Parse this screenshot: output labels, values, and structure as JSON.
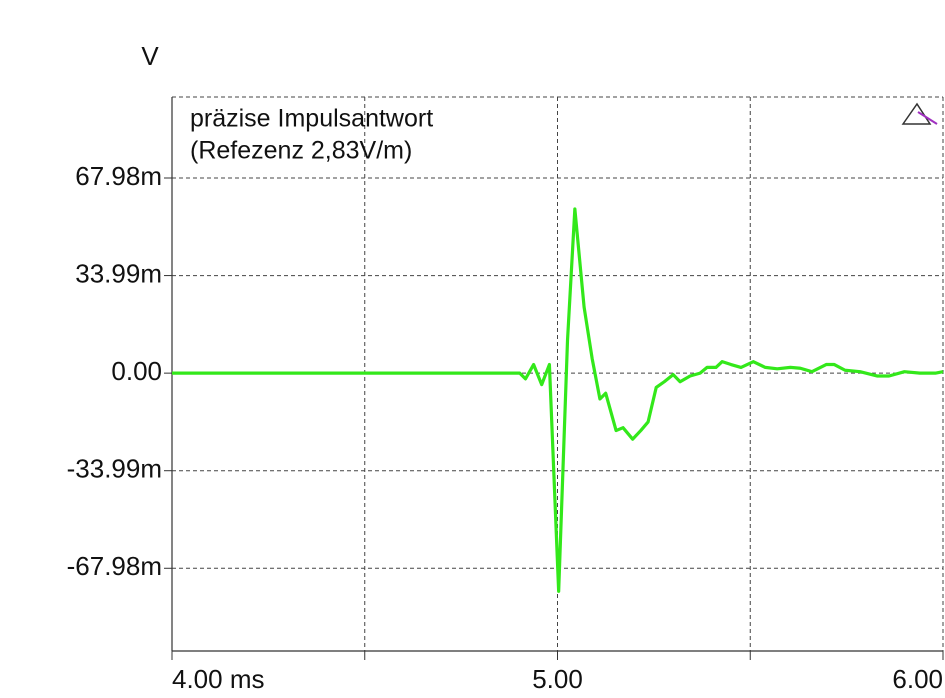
{
  "chart_data": {
    "type": "line",
    "y_unit": "V",
    "legend_lines": [
      "präzise Impulsantwort",
      "(Refezenz 2,83V/m)"
    ],
    "xlim": [
      4.0,
      6.0
    ],
    "xticks": [
      {
        "value": 4.0,
        "label": "4.00 ms"
      },
      {
        "value": 5.0,
        "label": "5.00"
      },
      {
        "value": 6.0,
        "label": "6.00"
      }
    ],
    "x_grid_lines": [
      4.5,
      5.5
    ],
    "ylim": [
      -0.0968,
      0.0962
    ],
    "yticks": [
      {
        "value": 0.06798,
        "label": "67.98m"
      },
      {
        "value": 0.03399,
        "label": "33.99m"
      },
      {
        "value": 0,
        "label": "0.00"
      },
      {
        "value": -0.03399,
        "label": "-33.99m"
      },
      {
        "value": -0.06798,
        "label": "-67.98m"
      }
    ],
    "grid": true,
    "x": [
      4.0,
      4.902,
      4.917,
      4.938,
      4.959,
      4.979,
      5.003,
      5.026,
      5.045,
      5.069,
      5.09,
      5.11,
      5.125,
      5.152,
      5.17,
      5.195,
      5.216,
      5.235,
      5.256,
      5.277,
      5.3,
      5.318,
      5.344,
      5.37,
      5.388,
      5.411,
      5.427,
      5.45,
      5.476,
      5.508,
      5.539,
      5.57,
      5.604,
      5.63,
      5.66,
      5.697,
      5.718,
      5.746,
      5.785,
      5.83,
      5.86,
      5.9,
      5.94,
      5.98,
      6.0
    ],
    "series": [
      {
        "name": "präzise Impulsantwort",
        "color": "#33e81a",
        "values": [
          0,
          0,
          -0.002,
          0.003,
          -0.004,
          0.003,
          -0.076,
          0.0115,
          0.0572,
          0.023,
          0.005,
          -0.009,
          -0.007,
          -0.02,
          -0.019,
          -0.023,
          -0.02,
          -0.017,
          -0.005,
          -0.003,
          -0.0005,
          -0.003,
          -0.001,
          0.0,
          0.002,
          0.002,
          0.004,
          0.003,
          0.002,
          0.004,
          0.002,
          0.0015,
          0.002,
          0.0017,
          0.0005,
          0.003,
          0.003,
          0.001,
          0.0005,
          -0.001,
          -0.001,
          0.0005,
          0.0,
          0.0,
          0.0005
        ]
      }
    ]
  }
}
